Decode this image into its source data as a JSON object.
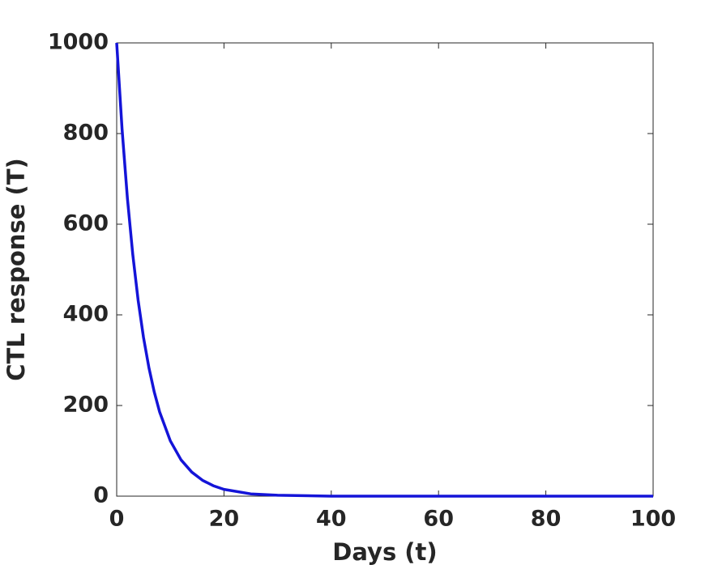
{
  "chart_data": {
    "type": "line",
    "x_label": "Days (t)",
    "y_label": "CTL response (T)",
    "x": [
      0,
      1,
      2,
      3,
      4,
      5,
      6,
      7,
      8,
      10,
      12,
      14,
      16,
      18,
      20,
      25,
      30,
      40,
      50,
      60,
      70,
      80,
      90,
      100
    ],
    "series": [
      {
        "name": "T",
        "color": "#1414d8",
        "values": [
          1000,
          810,
          657,
          533,
          432,
          350,
          284,
          230,
          186,
          122,
          80,
          53,
          35,
          23,
          15,
          5,
          2,
          0,
          0,
          0,
          0,
          0,
          0,
          0
        ]
      }
    ],
    "xlim": [
      0,
      100
    ],
    "xticks": [
      0,
      20,
      40,
      60,
      80,
      100
    ],
    "ylim": [
      0,
      1000
    ],
    "yticks": [
      0,
      200,
      400,
      600,
      800,
      1000
    ]
  }
}
